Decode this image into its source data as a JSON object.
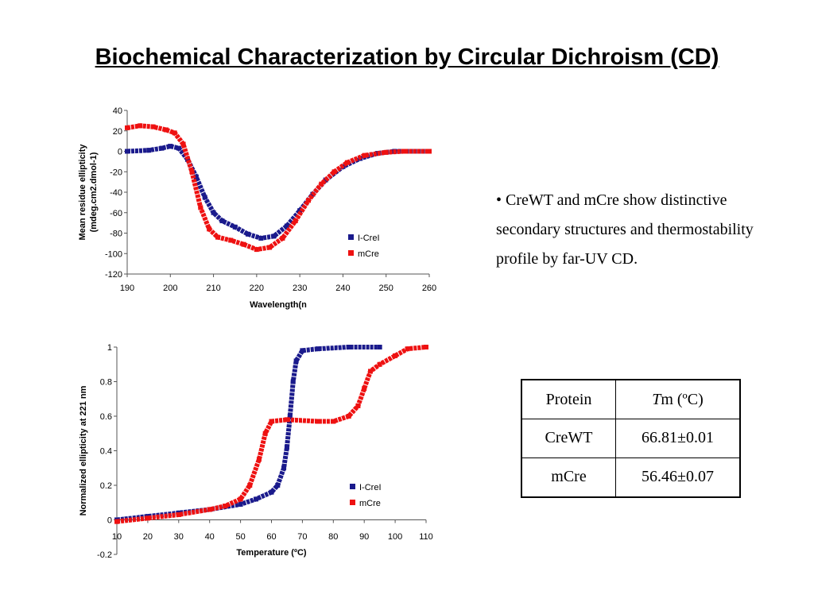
{
  "slide": {
    "title": "Biochemical Characterization by Circular Dichroism (CD)",
    "bullet": "• CreWT and mCre show distinctive secondary structures and thermostability profile by far-UV CD."
  },
  "colors": {
    "ICreI": "#1a1a8c",
    "mCre": "#ee1111"
  },
  "chart_data": [
    {
      "type": "scatter",
      "xlabel": "Wavelength(n",
      "ylabel": [
        "Mean residue ellipticity",
        "(mdeg.cm2.dmol-1)"
      ],
      "xlim": [
        190,
        260
      ],
      "ylim": [
        -120,
        40
      ],
      "x_ticks": [
        "190",
        "200",
        "210",
        "220",
        "230",
        "240",
        "250",
        "260"
      ],
      "y_ticks": [
        "40",
        "20",
        "0",
        "-20",
        "-40",
        "-60",
        "-80",
        "-100",
        "-120"
      ],
      "legend_position": "bottom-right",
      "series": [
        {
          "name": "I-CreI",
          "points": [
            [
              190,
              0
            ],
            [
              195,
              1
            ],
            [
              198,
              3
            ],
            [
              200,
              5
            ],
            [
              202,
              3
            ],
            [
              204,
              -8
            ],
            [
              206,
              -25
            ],
            [
              208,
              -45
            ],
            [
              210,
              -60
            ],
            [
              212,
              -68
            ],
            [
              215,
              -74
            ],
            [
              218,
              -81
            ],
            [
              221,
              -85
            ],
            [
              224,
              -83
            ],
            [
              227,
              -73
            ],
            [
              230,
              -58
            ],
            [
              233,
              -42
            ],
            [
              236,
              -28
            ],
            [
              240,
              -15
            ],
            [
              244,
              -7
            ],
            [
              248,
              -2
            ],
            [
              252,
              0
            ],
            [
              260,
              0
            ]
          ]
        },
        {
          "name": "mCre",
          "points": [
            [
              190,
              23
            ],
            [
              193,
              25
            ],
            [
              196,
              24
            ],
            [
              199,
              21
            ],
            [
              201,
              18
            ],
            [
              203,
              7
            ],
            [
              205,
              -20
            ],
            [
              207,
              -55
            ],
            [
              209,
              -76
            ],
            [
              211,
              -84
            ],
            [
              214,
              -87
            ],
            [
              217,
              -91
            ],
            [
              220,
              -96
            ],
            [
              223,
              -94
            ],
            [
              226,
              -85
            ],
            [
              229,
              -68
            ],
            [
              232,
              -48
            ],
            [
              235,
              -32
            ],
            [
              238,
              -20
            ],
            [
              241,
              -11
            ],
            [
              245,
              -4
            ],
            [
              250,
              -1
            ],
            [
              254,
              0
            ],
            [
              260,
              0
            ]
          ]
        }
      ]
    },
    {
      "type": "scatter",
      "xlabel": "Temperature (ºC)",
      "ylabel": "Normalized ellipticity at 221 nm",
      "xlim": [
        10,
        110
      ],
      "ylim": [
        -0.2,
        1
      ],
      "x_ticks": [
        "10",
        "20",
        "30",
        "40",
        "50",
        "60",
        "70",
        "80",
        "90",
        "100",
        "110"
      ],
      "y_ticks": [
        "1",
        "0.8",
        "0.6",
        "0.4",
        "0.2",
        "0",
        "-0.2"
      ],
      "legend_position": "bottom-right",
      "series": [
        {
          "name": "I-CreI",
          "points": [
            [
              10,
              0
            ],
            [
              20,
              0.02
            ],
            [
              30,
              0.04
            ],
            [
              40,
              0.06
            ],
            [
              50,
              0.09
            ],
            [
              55,
              0.12
            ],
            [
              60,
              0.16
            ],
            [
              62,
              0.2
            ],
            [
              64,
              0.3
            ],
            [
              65,
              0.42
            ],
            [
              66,
              0.6
            ],
            [
              67,
              0.8
            ],
            [
              68,
              0.92
            ],
            [
              70,
              0.98
            ],
            [
              75,
              0.99
            ],
            [
              85,
              1.0
            ],
            [
              95,
              1.0
            ]
          ]
        },
        {
          "name": "mCre",
          "points": [
            [
              10,
              -0.01
            ],
            [
              20,
              0.01
            ],
            [
              30,
              0.03
            ],
            [
              40,
              0.06
            ],
            [
              45,
              0.08
            ],
            [
              50,
              0.12
            ],
            [
              53,
              0.2
            ],
            [
              56,
              0.35
            ],
            [
              58,
              0.5
            ],
            [
              60,
              0.57
            ],
            [
              65,
              0.58
            ],
            [
              75,
              0.57
            ],
            [
              80,
              0.57
            ],
            [
              85,
              0.6
            ],
            [
              88,
              0.66
            ],
            [
              90,
              0.76
            ],
            [
              92,
              0.86
            ],
            [
              95,
              0.9
            ],
            [
              100,
              0.95
            ],
            [
              104,
              0.99
            ],
            [
              110,
              1.0
            ]
          ]
        }
      ]
    }
  ],
  "table": {
    "header_protein": "Protein",
    "header_tm_italic": "T",
    "header_tm_rest": "m (ºC)",
    "rows": [
      {
        "protein": "CreWT",
        "tm": "66.81±0.01"
      },
      {
        "protein": "mCre",
        "tm": "56.46±0.07"
      }
    ]
  }
}
